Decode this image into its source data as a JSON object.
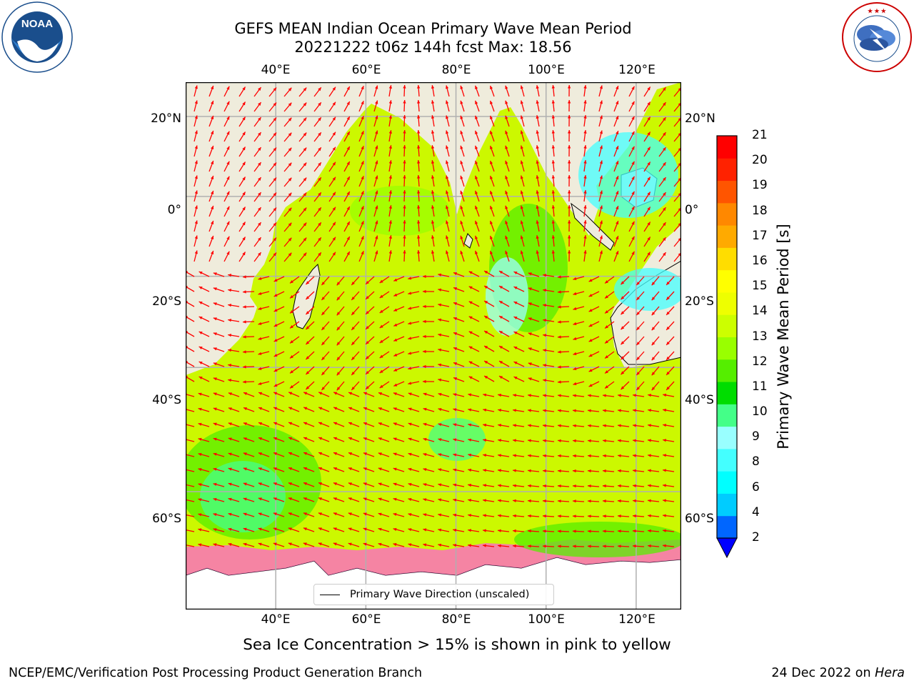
{
  "header": {
    "title_line1": "GEFS MEAN Indian Ocean Primary Wave Mean Period",
    "title_line2": "20221222 t06z 144h fcst   Max: 18.56"
  },
  "logos": {
    "noaa_text": "NOAA",
    "noaa_ring": "NATIONAL OCEANIC AND ATMOSPHERIC ADMINISTRATION · U.S. DEPARTMENT OF COMMERCE",
    "nws_ring": "NATIONAL WEATHER SERVICE"
  },
  "map": {
    "lon_range": [
      20,
      130
    ],
    "lat_range": [
      -72,
      28
    ],
    "longitude_ticks": [
      "40°E",
      "60°E",
      "80°E",
      "100°E",
      "120°E"
    ],
    "longitude_values": [
      40,
      60,
      80,
      100,
      120
    ],
    "latitude_ticks": [
      "20°N",
      "0°",
      "20°S",
      "40°S",
      "60°S"
    ],
    "latitude_values": [
      20,
      0,
      -20,
      -40,
      -60
    ],
    "legend_label": "Primary Wave Direction (unscaled)",
    "arrow_color": "#ff0000",
    "land_color": "#efecdc",
    "grid": true
  },
  "colorbar": {
    "label": "Primary Wave Mean Period [s]",
    "ticks": [
      "21",
      "20",
      "19",
      "18",
      "17",
      "16",
      "15",
      "14",
      "13",
      "12",
      "11",
      "10",
      "9",
      "8",
      "6",
      "4",
      "2"
    ],
    "colors_bottom_to_top": [
      "#0066ff",
      "#00ccff",
      "#00ffff",
      "#44ffff",
      "#99ffff",
      "#44ff88",
      "#00dd00",
      "#55ee00",
      "#99ff00",
      "#ccff00",
      "#eeff00",
      "#ffff00",
      "#ffdd00",
      "#ffaa00",
      "#ff8800",
      "#ff5500",
      "#ff2200",
      "#ff0000"
    ],
    "extend_color": "#0000ff"
  },
  "caption": "Sea Ice Concentration > 15% is shown in pink to yellow",
  "footer": {
    "left": "NCEP/EMC/Verification Post Processing Product Generation Branch",
    "right_date": "24 Dec 2022 on",
    "right_machine": "Hera"
  }
}
